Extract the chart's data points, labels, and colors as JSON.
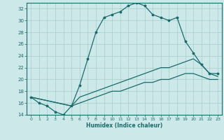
{
  "title": "",
  "xlabel": "Humidex (Indice chaleur)",
  "ylabel": "",
  "bg_color": "#cde8e8",
  "line_color": "#1a6b6b",
  "grid_color": "#a8cccc",
  "xlim": [
    -0.5,
    23.5
  ],
  "ylim": [
    14,
    33
  ],
  "xticks": [
    0,
    1,
    2,
    3,
    4,
    5,
    6,
    7,
    8,
    9,
    10,
    11,
    12,
    13,
    14,
    15,
    16,
    17,
    18,
    19,
    20,
    21,
    22,
    23
  ],
  "yticks": [
    14,
    16,
    18,
    20,
    22,
    24,
    26,
    28,
    30,
    32
  ],
  "line1_x": [
    0,
    1,
    2,
    3,
    4,
    5,
    6,
    7,
    8,
    9,
    10,
    11,
    12,
    13,
    14,
    15,
    16,
    17,
    18,
    19,
    20,
    21,
    22,
    23
  ],
  "line1_y": [
    17,
    16,
    15.5,
    14.5,
    14,
    15.5,
    19,
    23.5,
    28,
    30.5,
    31,
    31.5,
    32.5,
    33,
    32.5,
    31,
    30.5,
    30,
    30.5,
    26.5,
    24.5,
    22.5,
    21,
    21
  ],
  "line2_x": [
    0,
    5,
    6,
    7,
    8,
    9,
    10,
    11,
    12,
    13,
    14,
    15,
    16,
    17,
    18,
    19,
    20,
    21,
    22,
    23
  ],
  "line2_y": [
    17,
    15.5,
    17,
    17.5,
    18,
    18.5,
    19,
    19.5,
    20,
    20.5,
    21,
    21.5,
    22,
    22,
    22.5,
    23,
    23.5,
    22.5,
    21,
    20.5
  ],
  "line3_x": [
    0,
    5,
    6,
    7,
    8,
    9,
    10,
    11,
    12,
    13,
    14,
    15,
    16,
    17,
    18,
    19,
    20,
    21,
    22,
    23
  ],
  "line3_y": [
    17,
    15.5,
    16,
    16.5,
    17,
    17.5,
    18,
    18,
    18.5,
    19,
    19.5,
    19.5,
    20,
    20,
    20.5,
    21,
    21,
    20.5,
    20,
    20
  ]
}
